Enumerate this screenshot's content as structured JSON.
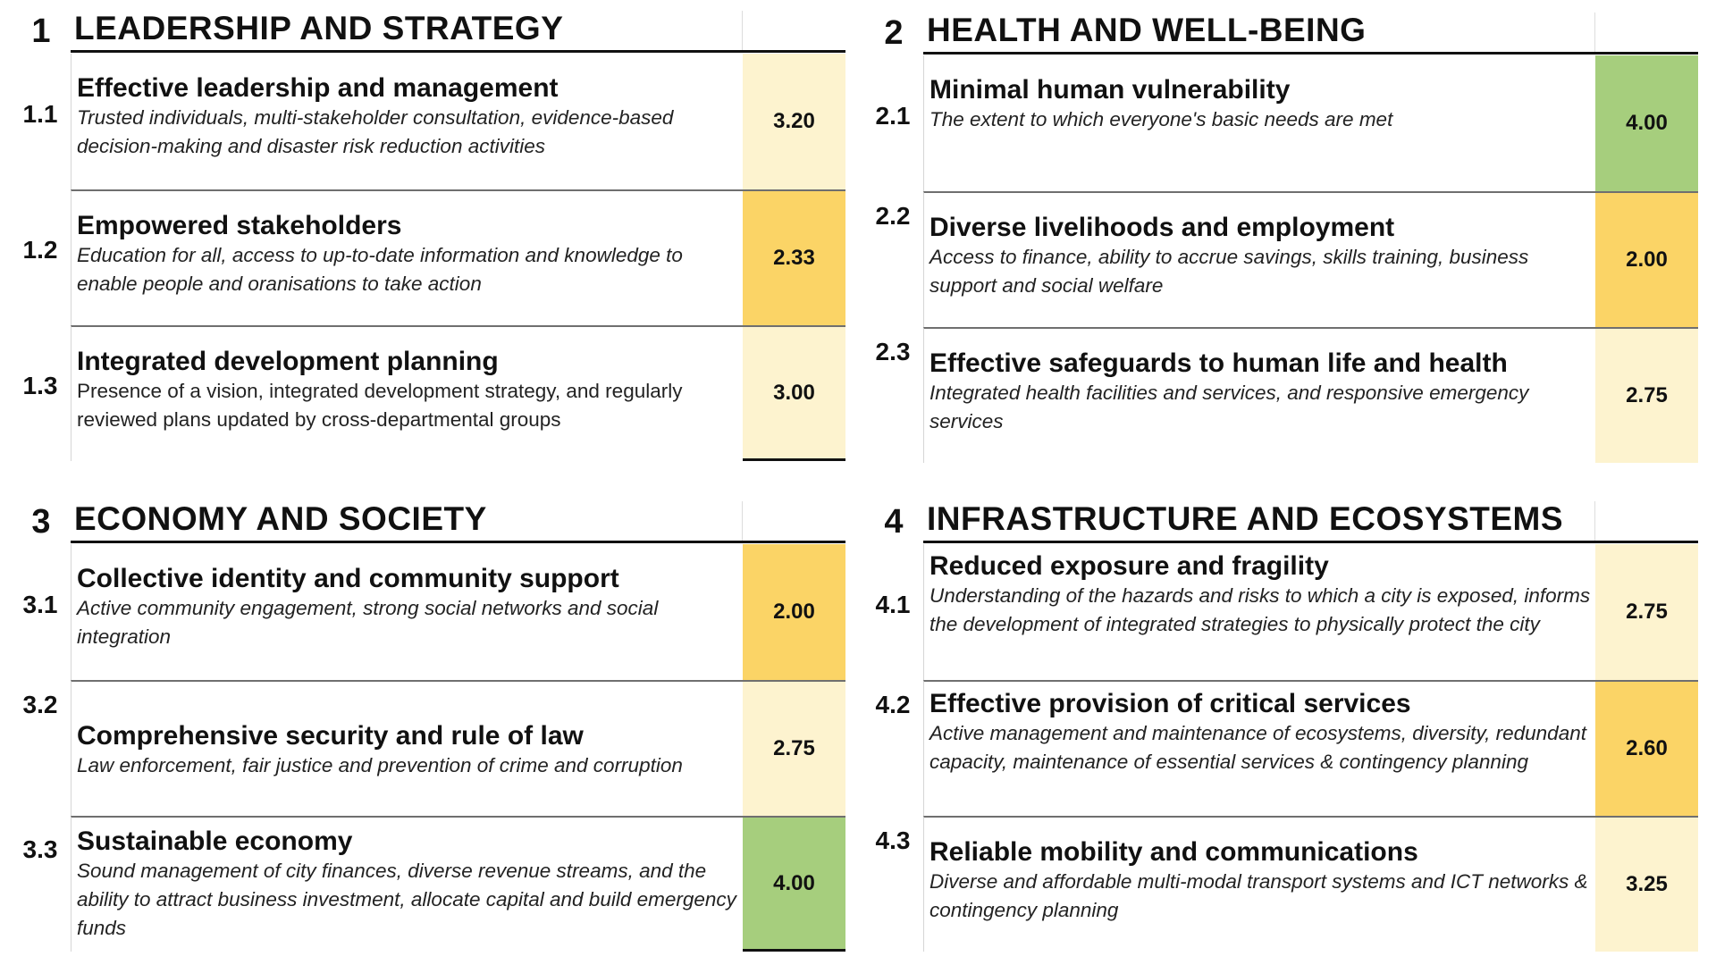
{
  "quadrants": [
    {
      "number": "1",
      "title": "LEADERSHIP AND STRATEGY",
      "rows": [
        {
          "number": "1.1",
          "title": "Effective leadership and management",
          "description": "Trusted individuals, multi-stakeholder consultation, evidence-based decision-making and disaster risk reduction activities",
          "score": "3.20",
          "color": "#fdf3cf"
        },
        {
          "number": "1.2",
          "title": "Empowered stakeholders",
          "description": "Education for all, access to up-to-date information and knowledge to enable people and oranisations to take action",
          "score": "2.33",
          "color": "#fbd466"
        },
        {
          "number": "1.3",
          "title": "Integrated development planning",
          "description": "Presence of a vision, integrated development strategy, and regularly reviewed plans updated by cross-departmental groups",
          "score": "3.00",
          "color": "#fdf3cf"
        }
      ]
    },
    {
      "number": "2",
      "title": "HEALTH AND WELL-BEING",
      "rows": [
        {
          "number": "2.1",
          "title": "Minimal human vulnerability",
          "description": "The extent to which everyone's basic needs are met",
          "score": "4.00",
          "color": "#a6ce7d"
        },
        {
          "number": "2.2",
          "title": "Diverse livelihoods and employment",
          "description": "Access to finance, ability to accrue savings, skills training, business support and social welfare",
          "score": "2.00",
          "color": "#fbd466"
        },
        {
          "number": "2.3",
          "title": "Effective safeguards to human life and health",
          "description": "Integrated health facilities and services, and responsive emergency services",
          "score": "2.75",
          "color": "#fdf3cf"
        }
      ]
    },
    {
      "number": "3",
      "title": "ECONOMY AND SOCIETY",
      "rows": [
        {
          "number": "3.1",
          "title": "Collective identity and community support",
          "description": "Active community engagement, strong social networks and social integration",
          "score": "2.00",
          "color": "#fbd466"
        },
        {
          "number": "3.2",
          "title": "Comprehensive security and rule of law",
          "description": "Law enforcement, fair justice and prevention of crime and corruption",
          "score": "2.75",
          "color": "#fdf3cf"
        },
        {
          "number": "3.3",
          "title": "Sustainable economy",
          "description": "Sound management of city finances, diverse revenue streams, and the ability to attract business investment, allocate capital and build emergency funds",
          "score": "4.00",
          "color": "#a6ce7d"
        }
      ]
    },
    {
      "number": "4",
      "title": "INFRASTRUCTURE AND ECOSYSTEMS",
      "rows": [
        {
          "number": "4.1",
          "title": "Reduced exposure and fragility",
          "description": "Understanding of the hazards and risks to which a city is exposed, informs the development of integrated strategies to physically protect the city",
          "score": "2.75",
          "color": "#fdf3cf"
        },
        {
          "number": "4.2",
          "title": "Effective provision of critical services",
          "description": "Active management and maintenance of ecosystems, diversity, redundant capacity, maintenance of essential services & contingency planning",
          "score": "2.60",
          "color": "#fbd466"
        },
        {
          "number": "4.3",
          "title": "Reliable mobility and communications",
          "description": "Diverse and affordable multi-modal transport systems and ICT networks & contingency planning",
          "score": "3.25",
          "color": "#fdf3cf"
        }
      ]
    }
  ]
}
